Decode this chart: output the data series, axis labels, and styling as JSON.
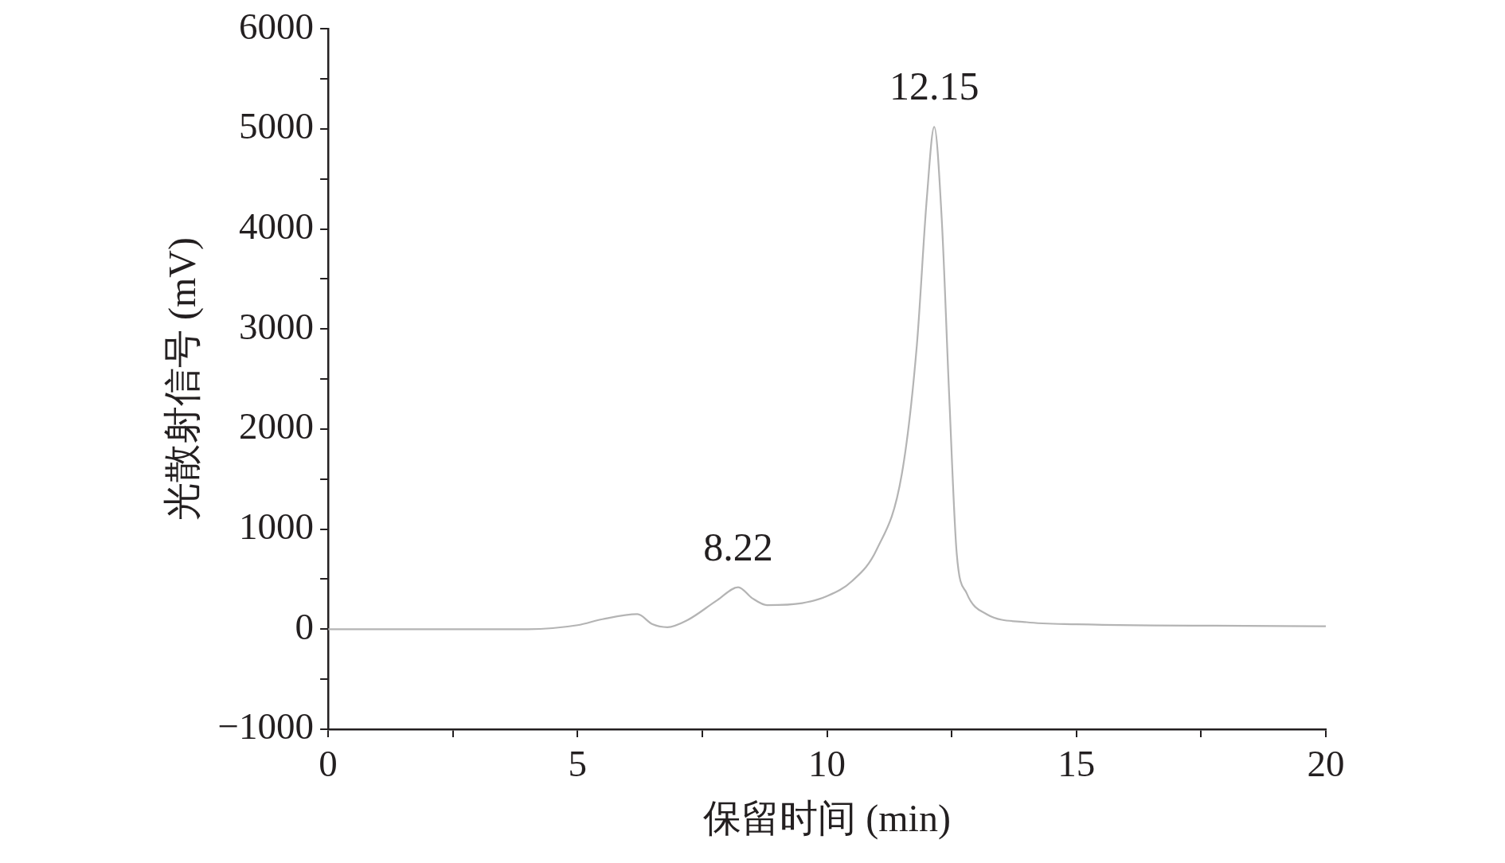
{
  "chart_data": {
    "type": "line",
    "xlabel": "保留时间 (min)",
    "ylabel": "光散射信号 (mV)",
    "xlim": [
      0,
      20
    ],
    "xticks": [
      0,
      {
        "value": 2.5,
        "label": null
      },
      5,
      {
        "value": 7.5,
        "label": null
      },
      10,
      {
        "value": 12.5,
        "label": null
      },
      15,
      {
        "value": 17.5,
        "label": null
      },
      20
    ],
    "ylim": [
      -1000,
      6000
    ],
    "yticks": [
      -1000,
      {
        "value": -500,
        "label": null
      },
      0,
      {
        "value": 500,
        "label": null
      },
      1000,
      {
        "value": 1500,
        "label": null
      },
      2000,
      {
        "value": 2500,
        "label": null
      },
      3000,
      {
        "value": 3500,
        "label": null
      },
      4000,
      {
        "value": 4500,
        "label": null
      },
      5000,
      {
        "value": 5500,
        "label": null
      },
      6000
    ],
    "grid": false,
    "legend": false,
    "marker": "none",
    "line_style": "solid",
    "series": [
      {
        "color": "#b4b4b4",
        "x": [
          0,
          4,
          5,
          5.5,
          6.2,
          6.5,
          6.8,
          7.2,
          7.8,
          8.22,
          8.5,
          8.8,
          9.5,
          10,
          10.5,
          11,
          11.5,
          11.8,
          12,
          12.15,
          12.3,
          12.45,
          12.6,
          12.8,
          13.2,
          14,
          15,
          20
        ],
        "values": [
          0,
          0,
          40,
          100,
          150,
          50,
          20,
          90,
          290,
          420,
          310,
          240,
          260,
          330,
          480,
          800,
          1550,
          2830,
          4300,
          5020,
          4100,
          2330,
          760,
          360,
          150,
          70,
          50,
          30
        ]
      }
    ],
    "annotations": [
      {
        "text": "8.22",
        "x": 8.22,
        "y": 420
      },
      {
        "text": "12.15",
        "x": 12.15,
        "y": 5020
      }
    ]
  }
}
